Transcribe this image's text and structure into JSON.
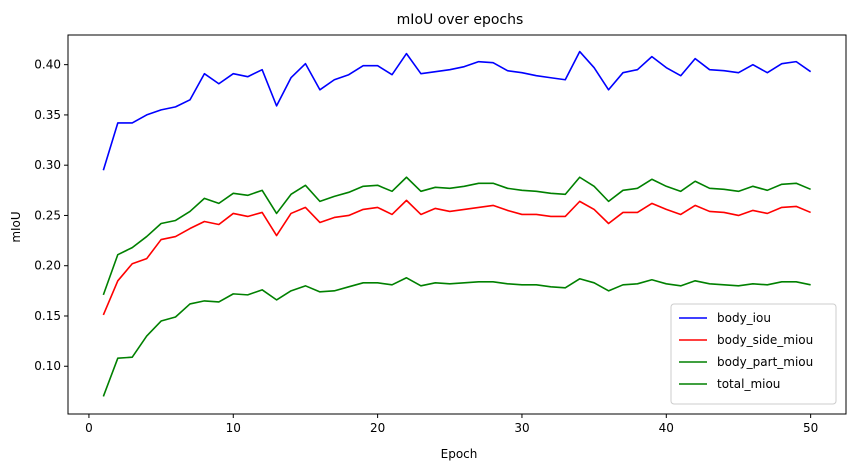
{
  "chart_data": {
    "type": "line",
    "title": "mIoU over epochs",
    "xlabel": "Epoch",
    "ylabel": "mIoU",
    "xlim": [
      -1.45,
      52.45
    ],
    "ylim": [
      0.0525,
      0.4295
    ],
    "xticks": [
      0,
      10,
      20,
      30,
      40,
      50
    ],
    "xtick_labels": [
      "0",
      "10",
      "20",
      "30",
      "40",
      "50"
    ],
    "yticks": [
      0.1,
      0.15,
      0.2,
      0.25,
      0.3,
      0.35,
      0.4
    ],
    "ytick_labels": [
      "0.10",
      "0.15",
      "0.20",
      "0.25",
      "0.30",
      "0.35",
      "0.40"
    ],
    "grid": false,
    "legend_position": "lower right",
    "x": [
      1,
      2,
      3,
      4,
      5,
      6,
      7,
      8,
      9,
      10,
      11,
      12,
      13,
      14,
      15,
      16,
      17,
      18,
      19,
      20,
      21,
      22,
      23,
      24,
      25,
      26,
      27,
      28,
      29,
      30,
      31,
      32,
      33,
      34,
      35,
      36,
      37,
      38,
      39,
      40,
      41,
      42,
      43,
      44,
      45,
      46,
      47,
      48,
      49,
      50
    ],
    "series": [
      {
        "name": "body_iou",
        "color": "#0000ff",
        "values": [
          0.295,
          0.342,
          0.342,
          0.35,
          0.355,
          0.358,
          0.365,
          0.391,
          0.381,
          0.391,
          0.388,
          0.395,
          0.359,
          0.387,
          0.401,
          0.375,
          0.385,
          0.39,
          0.399,
          0.399,
          0.39,
          0.411,
          0.391,
          0.393,
          0.395,
          0.398,
          0.403,
          0.402,
          0.394,
          0.392,
          0.389,
          0.387,
          0.385,
          0.413,
          0.397,
          0.375,
          0.392,
          0.395,
          0.408,
          0.397,
          0.389,
          0.406,
          0.395,
          0.394,
          0.392,
          0.4,
          0.392,
          0.401,
          0.403,
          0.393
        ]
      },
      {
        "name": "body_side_miou",
        "color": "#ff0000",
        "values": [
          0.151,
          0.185,
          0.202,
          0.207,
          0.226,
          0.229,
          0.237,
          0.244,
          0.241,
          0.252,
          0.249,
          0.253,
          0.23,
          0.252,
          0.258,
          0.243,
          0.248,
          0.25,
          0.256,
          0.258,
          0.251,
          0.265,
          0.251,
          0.257,
          0.254,
          0.256,
          0.258,
          0.26,
          0.255,
          0.251,
          0.251,
          0.249,
          0.249,
          0.264,
          0.256,
          0.242,
          0.253,
          0.253,
          0.262,
          0.256,
          0.251,
          0.26,
          0.254,
          0.253,
          0.25,
          0.255,
          0.252,
          0.258,
          0.259,
          0.253
        ]
      },
      {
        "name": "body_part_miou",
        "color": "#008000",
        "values": [
          0.07,
          0.108,
          0.109,
          0.13,
          0.145,
          0.149,
          0.162,
          0.165,
          0.164,
          0.172,
          0.171,
          0.176,
          0.166,
          0.175,
          0.18,
          0.174,
          0.175,
          0.179,
          0.183,
          0.183,
          0.181,
          0.188,
          0.18,
          0.183,
          0.182,
          0.183,
          0.184,
          0.184,
          0.182,
          0.181,
          0.181,
          0.179,
          0.178,
          0.187,
          0.183,
          0.175,
          0.181,
          0.182,
          0.186,
          0.182,
          0.18,
          0.185,
          0.182,
          0.181,
          0.18,
          0.182,
          0.181,
          0.184,
          0.184,
          0.181
        ]
      },
      {
        "name": "total_miou",
        "color": "#008000",
        "values": [
          0.171,
          0.211,
          0.218,
          0.229,
          0.242,
          0.245,
          0.254,
          0.267,
          0.262,
          0.272,
          0.27,
          0.275,
          0.252,
          0.271,
          0.28,
          0.264,
          0.269,
          0.273,
          0.279,
          0.28,
          0.274,
          0.288,
          0.274,
          0.278,
          0.277,
          0.279,
          0.282,
          0.282,
          0.277,
          0.275,
          0.274,
          0.272,
          0.271,
          0.288,
          0.279,
          0.264,
          0.275,
          0.277,
          0.286,
          0.279,
          0.274,
          0.284,
          0.277,
          0.276,
          0.274,
          0.279,
          0.275,
          0.281,
          0.282,
          0.276
        ]
      }
    ]
  }
}
